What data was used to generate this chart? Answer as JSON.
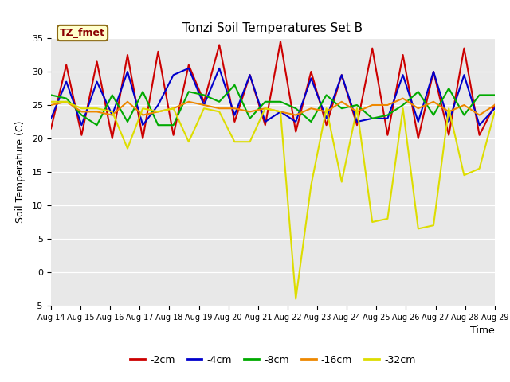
{
  "title": "Tonzi Soil Temperatures Set B",
  "xlabel": "Time",
  "ylabel": "Soil Temperature (C)",
  "annotation": "TZ_fmet",
  "ylim": [
    -5,
    35
  ],
  "yticks": [
    -5,
    0,
    5,
    10,
    15,
    20,
    25,
    30,
    35
  ],
  "xtick_labels": [
    "Aug 14",
    "Aug 15",
    "Aug 16",
    "Aug 17",
    "Aug 18",
    "Aug 19",
    "Aug 20",
    "Aug 21",
    "Aug 22",
    "Aug 23",
    "Aug 24",
    "Aug 25",
    "Aug 26",
    "Aug 27",
    "Aug 28",
    "Aug 29"
  ],
  "series_names": [
    "-2cm",
    "-4cm",
    "-8cm",
    "-16cm",
    "-32cm"
  ],
  "series_colors": [
    "#cc0000",
    "#0000cc",
    "#00aa00",
    "#ee8800",
    "#dddd00"
  ],
  "m2cm": [
    21.5,
    31.0,
    20.5,
    31.5,
    20.0,
    32.5,
    20.0,
    33.0,
    20.5,
    31.0,
    25.5,
    34.0,
    22.5,
    29.5,
    22.0,
    34.5,
    21.0,
    30.0,
    22.0,
    29.5,
    22.0,
    33.5,
    20.5,
    32.5,
    20.0,
    30.0,
    20.5,
    33.5,
    20.5,
    25.0
  ],
  "m4cm": [
    23.0,
    28.5,
    22.0,
    28.5,
    23.5,
    30.0,
    22.0,
    25.0,
    29.5,
    30.5,
    25.0,
    30.5,
    23.5,
    29.5,
    22.5,
    24.0,
    22.5,
    29.0,
    23.0,
    29.5,
    22.5,
    23.0,
    23.0,
    29.5,
    22.5,
    30.0,
    22.5,
    29.5,
    22.0,
    24.5
  ],
  "m8cm": [
    26.5,
    26.0,
    23.5,
    22.0,
    26.5,
    22.5,
    27.0,
    22.0,
    22.0,
    27.0,
    26.5,
    25.5,
    28.0,
    23.0,
    25.5,
    25.5,
    24.5,
    22.5,
    26.5,
    24.5,
    25.0,
    23.0,
    23.5,
    25.0,
    27.0,
    23.5,
    27.5,
    23.5,
    26.5,
    26.5
  ],
  "m16cm": [
    25.0,
    25.5,
    24.0,
    24.0,
    23.5,
    25.5,
    23.5,
    24.0,
    24.5,
    25.5,
    25.0,
    24.5,
    24.5,
    24.0,
    24.5,
    24.0,
    23.5,
    24.5,
    24.0,
    25.5,
    24.0,
    25.0,
    25.0,
    26.0,
    24.5,
    25.5,
    24.0,
    25.0,
    23.5,
    25.0
  ],
  "m32cm": [
    25.5,
    25.5,
    24.5,
    24.5,
    24.0,
    18.5,
    24.5,
    24.0,
    24.5,
    19.5,
    24.5,
    24.0,
    19.5,
    19.5,
    24.5,
    24.0,
    -4.0,
    13.0,
    24.5,
    13.5,
    24.5,
    7.5,
    8.0,
    24.5,
    6.5,
    7.0,
    24.5,
    14.5,
    15.5,
    24.0
  ],
  "plot_bg": "#e8e8e8",
  "title_fontsize": 11,
  "tick_fontsize": 8,
  "label_fontsize": 9,
  "legend_fontsize": 9
}
